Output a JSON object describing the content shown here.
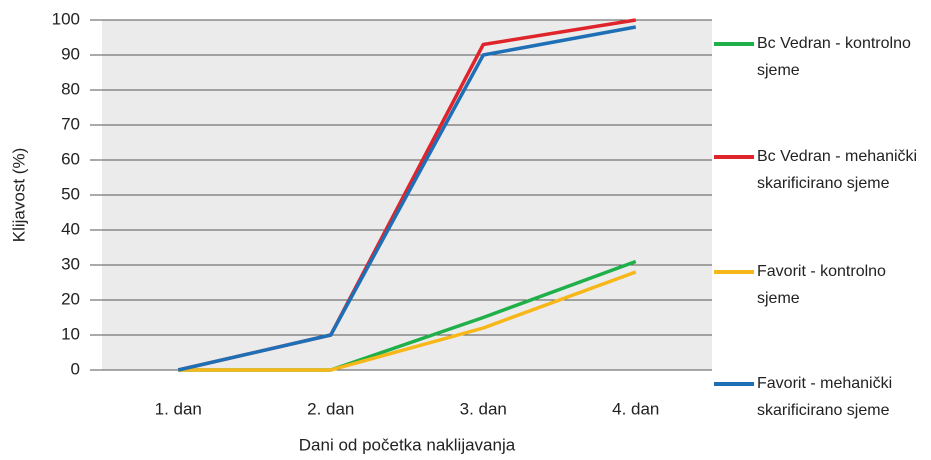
{
  "chart_data": {
    "type": "line",
    "x_label": "Dani od početka naklijavanja",
    "y_label": "Klijavost (%)",
    "categories": [
      "1. dan",
      "2. dan",
      "3. dan",
      "4. dan"
    ],
    "series": [
      {
        "name": "Bc Vedran - kontrolno sjeme",
        "color": "#1fb04a",
        "values": [
          0,
          0,
          15,
          31
        ]
      },
      {
        "name": "Bc Vedran - mehanički skarificirano sjeme",
        "color": "#e0242b",
        "values": [
          0,
          10,
          93,
          100
        ]
      },
      {
        "name": "Favorit - kontrolno sjeme",
        "color": "#f7b718",
        "values": [
          0,
          0,
          12,
          28
        ]
      },
      {
        "name": "Favorit - mehanički skarificirano sjeme",
        "color": "#1f6fb6",
        "values": [
          0,
          10,
          90,
          98
        ]
      }
    ],
    "ylim": [
      0,
      100
    ],
    "yticks": [
      0,
      10,
      20,
      30,
      40,
      50,
      60,
      70,
      80,
      90,
      100
    ],
    "grid": true
  }
}
